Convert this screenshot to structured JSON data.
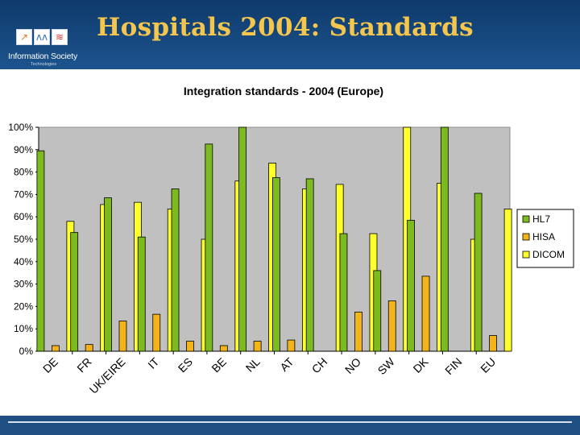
{
  "header": {
    "title": "Hospitals 2004: Standards"
  },
  "logo": {
    "name": "Information Society",
    "subtitle": "Technologies",
    "tiles": [
      "↗",
      "ʌʌ",
      "≋"
    ]
  },
  "colors": {
    "HL7": "#7dba1f",
    "HISA": "#f2b419",
    "DICOM": "#ffff2b",
    "plot_bg": "#c0c0c0",
    "header_bg": "#1f4e82",
    "title": "#f4c64d"
  },
  "chart_data": {
    "type": "bar",
    "title": "Integration standards - 2004 (Europe)",
    "categories": [
      "DE",
      "FR",
      "UK/EIRE",
      "IT",
      "ES",
      "BE",
      "NL",
      "AT",
      "CH",
      "NO",
      "SW",
      "DK",
      "FIN",
      "EU"
    ],
    "series": [
      {
        "name": "HL7",
        "values": [
          89.5,
          53,
          68.5,
          51,
          72.5,
          92.5,
          100,
          77.5,
          77,
          52.5,
          36,
          58.5,
          100,
          70.5
        ]
      },
      {
        "name": "HISA",
        "values": [
          2.5,
          3,
          13.5,
          16.5,
          4.5,
          2.5,
          4.5,
          5,
          null,
          17.5,
          22.5,
          33.5,
          null,
          7
        ]
      },
      {
        "name": "DICOM",
        "values": [
          58,
          65.5,
          66.5,
          63.5,
          50,
          76,
          84,
          72.5,
          74.5,
          52.5,
          100,
          75,
          50,
          63.5
        ]
      }
    ],
    "ylim": [
      0,
      100
    ],
    "yticks": [
      "0%",
      "10%",
      "20%",
      "30%",
      "40%",
      "50%",
      "60%",
      "70%",
      "80%",
      "90%",
      "100%"
    ],
    "grid": "none",
    "legend": "right"
  }
}
